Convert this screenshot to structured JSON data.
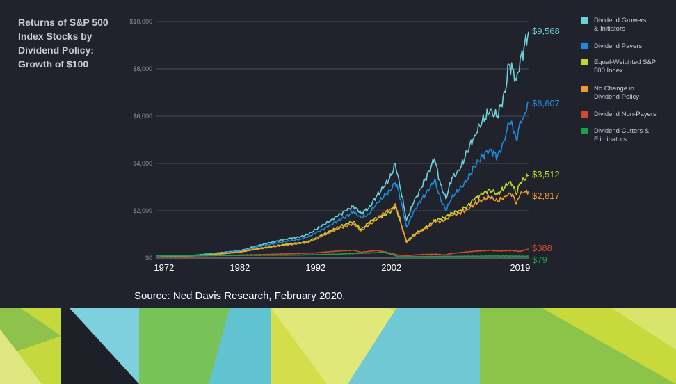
{
  "chart_data": {
    "type": "line",
    "title": "Returns of S&P 500\nIndex Stocks by\nDividend Policy:\nGrowth of $100",
    "xlim": [
      1971,
      2020.2
    ],
    "ylim": [
      0,
      10000
    ],
    "x_ticks": [
      1972,
      1982,
      1992,
      2002,
      2019
    ],
    "x_tick_labels": [
      "1972",
      "1982",
      "1992",
      "2002",
      "2019"
    ],
    "y_ticks": [
      0,
      2000,
      4000,
      6000,
      8000,
      10000
    ],
    "y_tick_labels": [
      "$0",
      "$2,000",
      "$4,000",
      "$6,000",
      "$8,000",
      "$10,000"
    ],
    "grid": "horizontal",
    "legend_position": "right",
    "series": [
      {
        "name": "Dividend Growers\n& Initiators",
        "color": "#6ecfd8",
        "end_label": "$9,568",
        "x": [
          1971,
          1974,
          1976,
          1980,
          1982,
          1984,
          1986,
          1988,
          1990,
          1991,
          1992,
          1994,
          1995,
          1996,
          1997,
          1998,
          1999,
          2000,
          2001,
          2002,
          2002.5,
          2003,
          2004,
          2005,
          2006,
          2007,
          2007.7,
          2008.5,
          2009.2,
          2010,
          2011,
          2012,
          2013,
          2014,
          2015,
          2016,
          2017,
          2017.5,
          2018,
          2018.5,
          2019,
          2019.5,
          2020.1
        ],
        "y": [
          100,
          90,
          120,
          250,
          310,
          500,
          650,
          800,
          900,
          1000,
          1200,
          1600,
          1800,
          2000,
          2200,
          1900,
          2100,
          2600,
          3000,
          3500,
          4000,
          3300,
          1600,
          2400,
          3000,
          3700,
          4200,
          3100,
          2500,
          3400,
          3700,
          4500,
          5200,
          5800,
          6200,
          6000,
          7000,
          8200,
          8000,
          7500,
          8400,
          8900,
          9568
        ]
      },
      {
        "name": "Dividend Payers",
        "color": "#1f8ad9",
        "end_label": "$6,607",
        "x": [
          1971,
          1974,
          1976,
          1980,
          1982,
          1984,
          1986,
          1988,
          1990,
          1991,
          1992,
          1994,
          1995,
          1996,
          1997,
          1998,
          1999,
          2000,
          2001,
          2002,
          2002.5,
          2003,
          2004,
          2005,
          2006,
          2007,
          2007.7,
          2008.5,
          2009.2,
          2010,
          2011,
          2012,
          2013,
          2014,
          2015,
          2016,
          2017,
          2017.5,
          2018,
          2018.5,
          2019,
          2019.5,
          2020.1
        ],
        "y": [
          100,
          85,
          110,
          230,
          290,
          450,
          580,
          700,
          800,
          900,
          1050,
          1400,
          1600,
          1750,
          1950,
          1700,
          1850,
          2300,
          2600,
          2900,
          3200,
          2800,
          1300,
          2000,
          2500,
          2900,
          3300,
          2500,
          2000,
          2600,
          2900,
          3300,
          3900,
          4300,
          4600,
          4300,
          5000,
          5700,
          5600,
          5000,
          5800,
          6000,
          6607
        ]
      },
      {
        "name": "Equal-Weighted S&P\n500 Index",
        "color": "#c2d62f",
        "end_label": "$3,512",
        "x": [
          1971,
          1974,
          1976,
          1980,
          1982,
          1984,
          1986,
          1988,
          1990,
          1991,
          1992,
          1994,
          1995,
          1996,
          1997,
          1998,
          1999,
          2000,
          2001,
          2002,
          2002.5,
          2003,
          2004,
          2005,
          2006,
          2007,
          2007.7,
          2008.5,
          2009.2,
          2010,
          2011,
          2012,
          2013,
          2014,
          2015,
          2016,
          2017,
          2017.5,
          2018,
          2018.5,
          2019,
          2019.5,
          2020.1
        ],
        "y": [
          100,
          70,
          100,
          200,
          260,
          380,
          480,
          580,
          650,
          700,
          850,
          1150,
          1300,
          1450,
          1550,
          1200,
          1500,
          1700,
          1800,
          2000,
          2200,
          1700,
          700,
          1000,
          1200,
          1400,
          1600,
          1650,
          1750,
          1900,
          2000,
          2200,
          2500,
          2700,
          2900,
          2700,
          3000,
          3200,
          3100,
          2700,
          3200,
          3300,
          3512
        ]
      },
      {
        "name": "No Change in\nDividend Policy",
        "color": "#f29a2e",
        "end_label": "$2,817",
        "x": [
          1971,
          1974,
          1976,
          1980,
          1982,
          1984,
          1986,
          1988,
          1990,
          1991,
          1992,
          1994,
          1995,
          1996,
          1997,
          1998,
          1999,
          2000,
          2001,
          2002,
          2002.5,
          2003,
          2004,
          2005,
          2006,
          2007,
          2007.7,
          2008.5,
          2009.2,
          2010,
          2011,
          2012,
          2013,
          2014,
          2015,
          2016,
          2017,
          2017.5,
          2018,
          2018.5,
          2019,
          2019.5,
          2020.1
        ],
        "y": [
          100,
          70,
          95,
          190,
          250,
          360,
          460,
          550,
          620,
          670,
          800,
          1100,
          1250,
          1350,
          1450,
          1150,
          1400,
          1600,
          1900,
          2100,
          2300,
          1800,
          650,
          950,
          1150,
          1350,
          1550,
          1550,
          1650,
          1800,
          1900,
          2050,
          2300,
          2450,
          2600,
          2400,
          2600,
          2750,
          2700,
          2300,
          2700,
          2750,
          2817
        ]
      },
      {
        "name": "Dividend Non-Payers",
        "color": "#d24a2b",
        "end_label": "$388",
        "x": [
          1971,
          1976,
          1980,
          1985,
          1988,
          1992,
          1995,
          1997,
          1998,
          2000,
          2001,
          2002,
          2003,
          2004,
          2006,
          2008,
          2009,
          2010,
          2012,
          2013,
          2015,
          2016,
          2018,
          2019,
          2020.1
        ],
        "y": [
          100,
          90,
          120,
          150,
          180,
          220,
          300,
          330,
          250,
          320,
          270,
          200,
          120,
          110,
          150,
          170,
          130,
          200,
          260,
          290,
          330,
          300,
          320,
          280,
          388
        ]
      },
      {
        "name": "Dividend Cutters &\nEliminators",
        "color": "#1aa048",
        "end_label": "$79",
        "x": [
          1971,
          1980,
          1990,
          1995,
          2000,
          2001,
          2003,
          2008,
          2012,
          2016,
          2020.1
        ],
        "y": [
          100,
          110,
          130,
          170,
          230,
          250,
          60,
          70,
          80,
          90,
          79
        ]
      }
    ],
    "source": "Source: Ned Davis Research, February 2020."
  },
  "colors": {
    "background": "#20232c",
    "banner_base": "#1e2028"
  }
}
